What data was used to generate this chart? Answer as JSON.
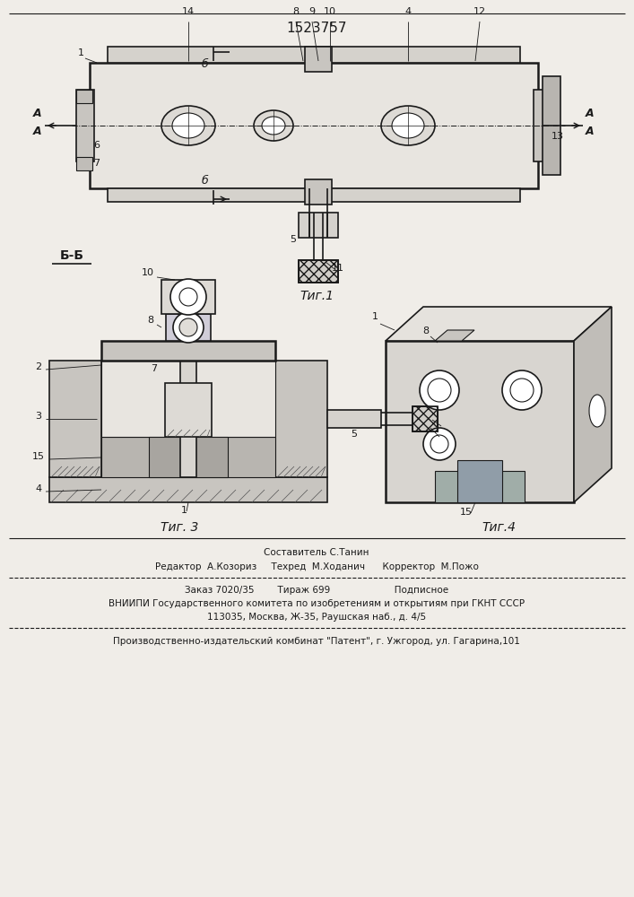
{
  "patent_number": "1523757",
  "background_color": "#f0ede8",
  "line_color": "#1a1a1a",
  "fig1_caption": "Τиг.1",
  "fig3_caption": "Τиг. 3",
  "fig4_caption": "Τиг.4",
  "section_label": "Б-Б",
  "footer_lines": [
    "Составитель С.Танин",
    "Редактор  А.Козориз     Техред  М.Ходанич      Корректор  М.Пожо",
    "Заказ 7020/35        Тираж 699                      Подписное",
    "ВНИИПИ Государственного комитета по изобретениям и открытиям при ГКНТ СССР",
    "113035, Москва, Ж-35, Раушская наб., д. 4/5",
    "Производственно-издательский комбинат \"Патент\", г. Ужгород, ул. Гагарина,101"
  ]
}
